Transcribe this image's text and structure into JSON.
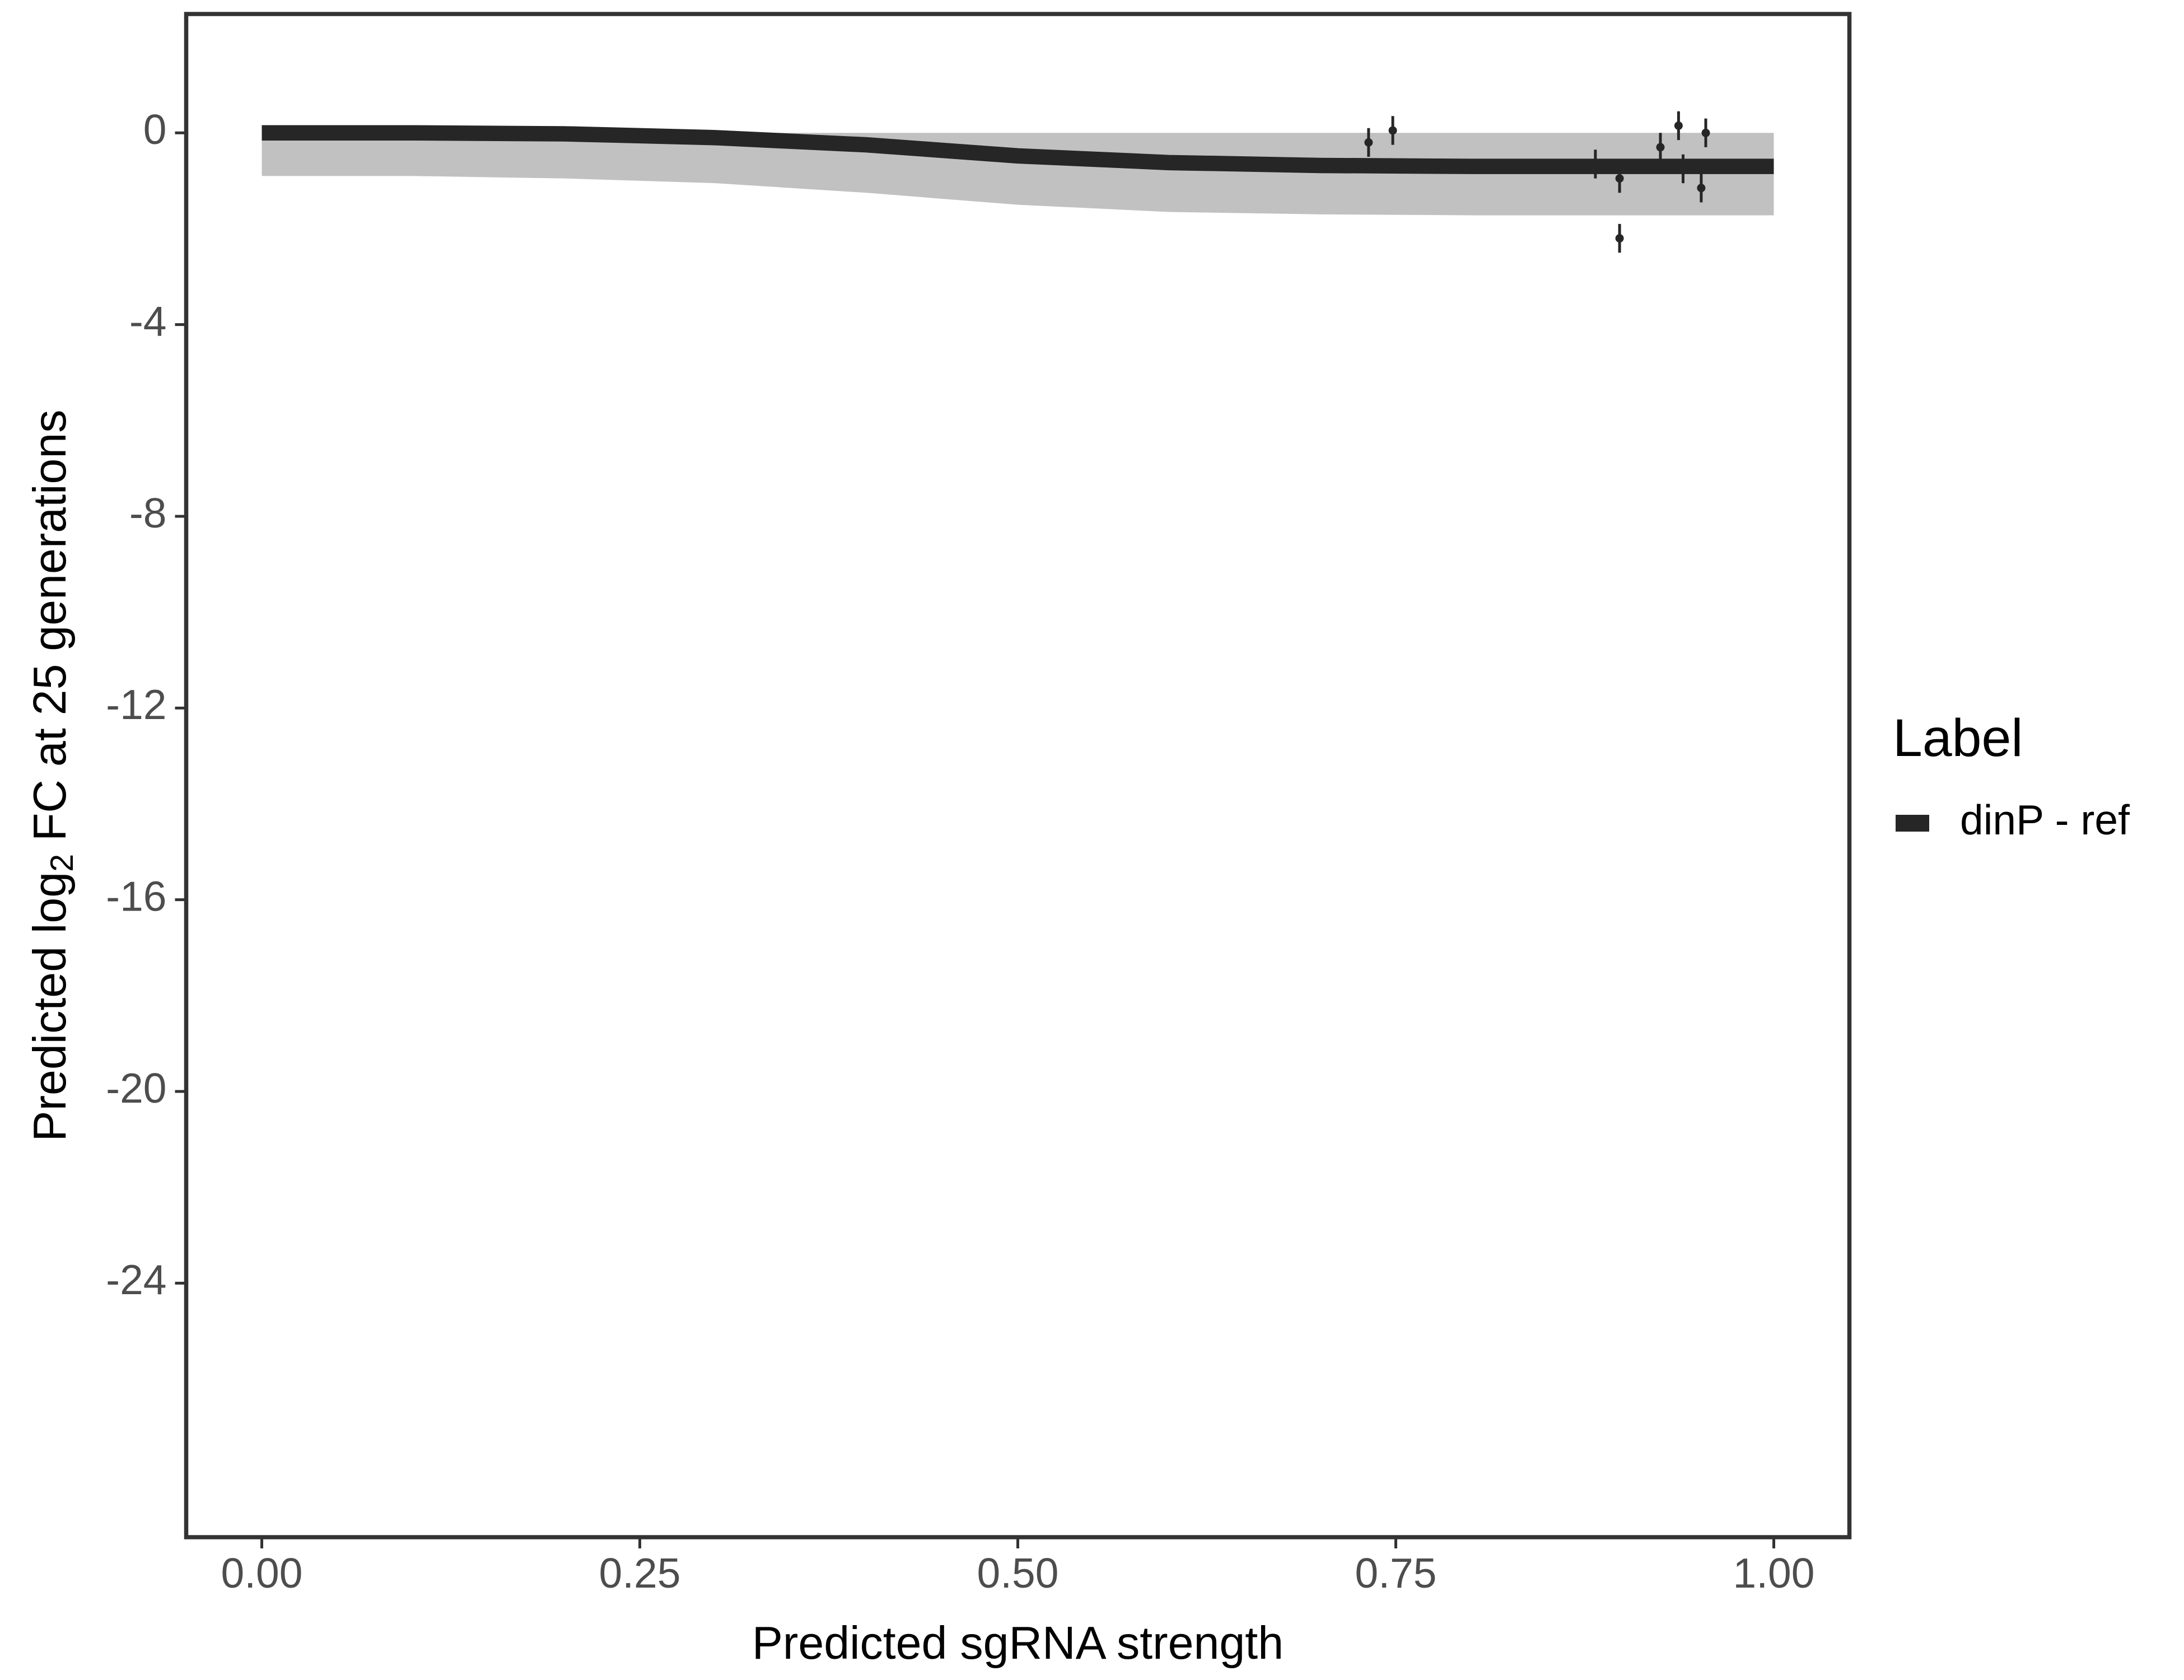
{
  "chart_data": {
    "type": "line",
    "xlabel": "Predicted sgRNA strength",
    "ylabel": {
      "before": "Predicted  log",
      "sub": "2",
      "after": " FC at 25 generations"
    },
    "xlim": [
      -0.05,
      1.05
    ],
    "ylim": [
      2.48,
      -29.3
    ],
    "xticks": [
      {
        "value": 0,
        "label": "0.00"
      },
      {
        "value": 0.25,
        "label": "0.25"
      },
      {
        "value": 0.5,
        "label": "0.50"
      },
      {
        "value": 0.75,
        "label": "0.75"
      },
      {
        "value": 1,
        "label": "1.00"
      }
    ],
    "yticks": [
      0,
      -4,
      -8,
      -12,
      -16,
      -20,
      -24
    ],
    "grid": false,
    "legend_title": "Label",
    "legend_position": "right",
    "series": [
      {
        "name": "dinP - ref",
        "color": "#262626",
        "x": [
          0,
          0.1,
          0.2,
          0.3,
          0.4,
          0.5,
          0.6,
          0.7,
          0.8,
          0.9,
          1.0
        ],
        "values": [
          0,
          0,
          -0.02,
          -0.1,
          -0.25,
          -0.48,
          -0.62,
          -0.68,
          -0.7,
          -0.7,
          -0.7
        ]
      }
    ],
    "band": {
      "color": "#a6a6a6",
      "x": [
        0,
        0.1,
        0.2,
        0.3,
        0.4,
        0.5,
        0.6,
        0.7,
        0.8,
        0.9,
        1.0
      ],
      "lower": [
        -0.9,
        -0.9,
        -0.95,
        -1.05,
        -1.25,
        -1.5,
        -1.65,
        -1.7,
        -1.72,
        -1.72,
        -1.72
      ],
      "upper": [
        0,
        0,
        0,
        0,
        0,
        0,
        0,
        0,
        0,
        0,
        0
      ]
    },
    "points": {
      "color": "#262626",
      "x": [
        0.732,
        0.748,
        0.882,
        0.898,
        0.898,
        0.925,
        0.937,
        0.94,
        0.952,
        0.955
      ],
      "y": [
        -0.2,
        0.05,
        -0.65,
        -0.95,
        -2.2,
        -0.3,
        0.15,
        -0.75,
        -1.15,
        0.0
      ],
      "err": [
        0.3,
        0.3,
        0.3,
        0.3,
        0.3,
        0.3,
        0.3,
        0.3,
        0.3,
        0.3
      ]
    }
  }
}
